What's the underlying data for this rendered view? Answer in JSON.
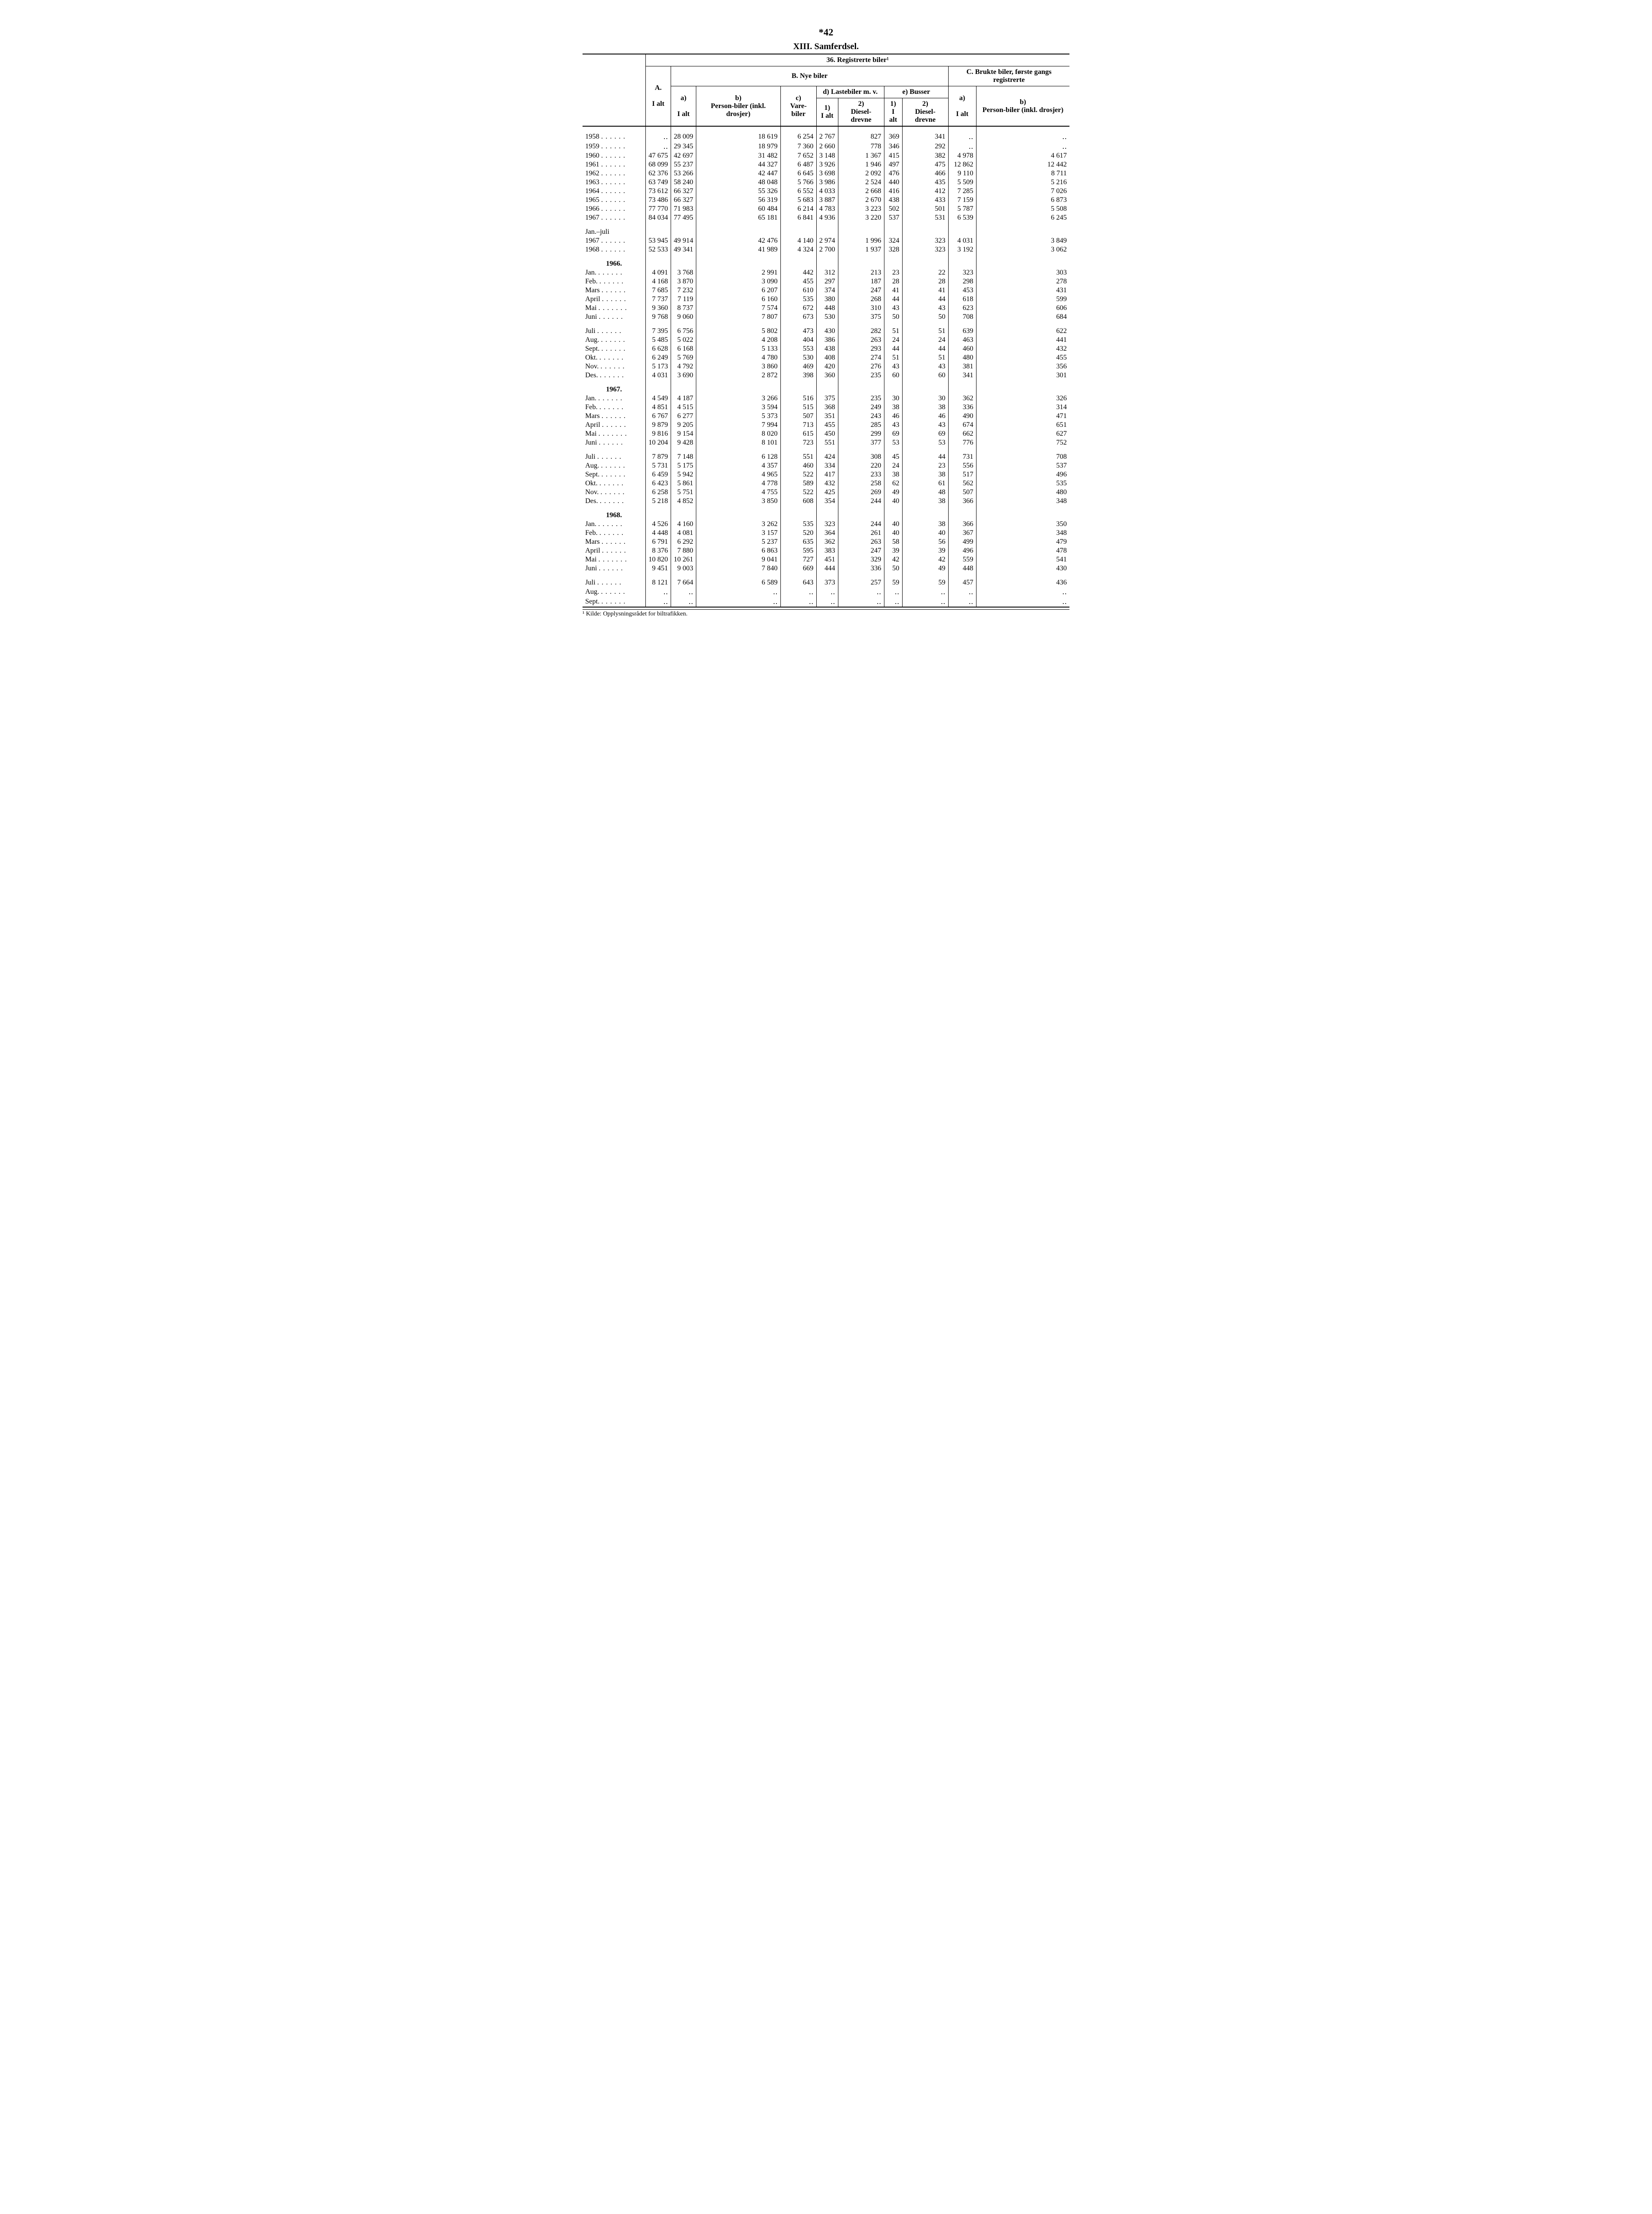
{
  "page_number": "*42",
  "section_title": "XIII. Samferdsel.",
  "table_title": "36. Registrerte biler¹",
  "header": {
    "A": "A.",
    "A_sub": "I alt",
    "B": "B. Nye biler",
    "C": "C. Brukte biler, første gangs registrerte",
    "a": "a)",
    "a_sub": "I alt",
    "b": "b)",
    "b_sub": "Person-biler (inkl. drosjer)",
    "c": "c)",
    "c_sub": "Vare-biler",
    "d": "d) Lastebiler m. v.",
    "d1": "1)",
    "d1_sub": "I alt",
    "d2": "2)",
    "d2_sub": "Diesel-drevne",
    "e": "e) Busser",
    "e1": "1)",
    "e1_sub": "I alt",
    "e2": "2)",
    "e2_sub": "Diesel-drevne",
    "Ca": "a)",
    "Ca_sub": "I alt",
    "Cb": "b)",
    "Cb_sub": "Person-biler (inkl. drosjer)"
  },
  "footnote": "¹ Kilde: Opplysningsrådet for biltrafikken.",
  "groups": [
    {
      "rows": [
        [
          "1958",
          "‥",
          "28 009",
          "18 619",
          "6 254",
          "2 767",
          "827",
          "369",
          "341",
          "‥",
          "‥"
        ],
        [
          "1959",
          "‥",
          "29 345",
          "18 979",
          "7 360",
          "2 660",
          "778",
          "346",
          "292",
          "‥",
          "‥"
        ],
        [
          "1960",
          "47 675",
          "42 697",
          "31 482",
          "7 652",
          "3 148",
          "1 367",
          "415",
          "382",
          "4 978",
          "4 617"
        ],
        [
          "1961",
          "68 099",
          "55 237",
          "44 327",
          "6 487",
          "3 926",
          "1 946",
          "497",
          "475",
          "12 862",
          "12 442"
        ],
        [
          "1962",
          "62 376",
          "53 266",
          "42 447",
          "6 645",
          "3 698",
          "2 092",
          "476",
          "466",
          "9 110",
          "8 711"
        ],
        [
          "1963",
          "63 749",
          "58 240",
          "48 048",
          "5 766",
          "3 986",
          "2 524",
          "440",
          "435",
          "5 509",
          "5 216"
        ],
        [
          "1964",
          "73 612",
          "66 327",
          "55 326",
          "6 552",
          "4 033",
          "2 668",
          "416",
          "412",
          "7 285",
          "7 026"
        ],
        [
          "1965",
          "73 486",
          "66 327",
          "56 319",
          "5 683",
          "3 887",
          "2 670",
          "438",
          "433",
          "7 159",
          "6 873"
        ],
        [
          "1966",
          "77 770",
          "71 983",
          "60 484",
          "6 214",
          "4 783",
          "3 223",
          "502",
          "501",
          "5 787",
          "5 508"
        ],
        [
          "1967",
          "84 034",
          "77 495",
          "65 181",
          "6 841",
          "4 936",
          "3 220",
          "537",
          "531",
          "6 539",
          "6 245"
        ]
      ]
    },
    {
      "heading": "Jan.–juli",
      "rows": [
        [
          "1967",
          "53 945",
          "49 914",
          "42 476",
          "4 140",
          "2 974",
          "1 996",
          "324",
          "323",
          "4 031",
          "3 849"
        ],
        [
          "1968",
          "52 533",
          "49 341",
          "41 989",
          "4 324",
          "2 700",
          "1 937",
          "328",
          "323",
          "3 192",
          "3 062"
        ]
      ]
    },
    {
      "heading": "1966.",
      "rows": [
        [
          "Jan.",
          "4 091",
          "3 768",
          "2 991",
          "442",
          "312",
          "213",
          "23",
          "22",
          "323",
          "303"
        ],
        [
          "Feb.",
          "4 168",
          "3 870",
          "3 090",
          "455",
          "297",
          "187",
          "28",
          "28",
          "298",
          "278"
        ],
        [
          "Mars",
          "7 685",
          "7 232",
          "6 207",
          "610",
          "374",
          "247",
          "41",
          "41",
          "453",
          "431"
        ],
        [
          "April",
          "7 737",
          "7 119",
          "6 160",
          "535",
          "380",
          "268",
          "44",
          "44",
          "618",
          "599"
        ],
        [
          "Mai",
          "9 360",
          "8 737",
          "7 574",
          "672",
          "448",
          "310",
          "43",
          "43",
          "623",
          "606"
        ],
        [
          "Juni",
          "9 768",
          "9 060",
          "7 807",
          "673",
          "530",
          "375",
          "50",
          "50",
          "708",
          "684"
        ]
      ]
    },
    {
      "rows": [
        [
          "Juli",
          "7 395",
          "6 756",
          "5 802",
          "473",
          "430",
          "282",
          "51",
          "51",
          "639",
          "622"
        ],
        [
          "Aug.",
          "5 485",
          "5 022",
          "4 208",
          "404",
          "386",
          "263",
          "24",
          "24",
          "463",
          "441"
        ],
        [
          "Sept.",
          "6 628",
          "6 168",
          "5 133",
          "553",
          "438",
          "293",
          "44",
          "44",
          "460",
          "432"
        ],
        [
          "Okt.",
          "6 249",
          "5 769",
          "4 780",
          "530",
          "408",
          "274",
          "51",
          "51",
          "480",
          "455"
        ],
        [
          "Nov.",
          "5 173",
          "4 792",
          "3 860",
          "469",
          "420",
          "276",
          "43",
          "43",
          "381",
          "356"
        ],
        [
          "Des.",
          "4 031",
          "3 690",
          "2 872",
          "398",
          "360",
          "235",
          "60",
          "60",
          "341",
          "301"
        ]
      ]
    },
    {
      "heading": "1967.",
      "rows": [
        [
          "Jan.",
          "4 549",
          "4 187",
          "3 266",
          "516",
          "375",
          "235",
          "30",
          "30",
          "362",
          "326"
        ],
        [
          "Feb.",
          "4 851",
          "4 515",
          "3 594",
          "515",
          "368",
          "249",
          "38",
          "38",
          "336",
          "314"
        ],
        [
          "Mars",
          "6 767",
          "6 277",
          "5 373",
          "507",
          "351",
          "243",
          "46",
          "46",
          "490",
          "471"
        ],
        [
          "April",
          "9 879",
          "9 205",
          "7 994",
          "713",
          "455",
          "285",
          "43",
          "43",
          "674",
          "651"
        ],
        [
          "Mai",
          "9 816",
          "9 154",
          "8 020",
          "615",
          "450",
          "299",
          "69",
          "69",
          "662",
          "627"
        ],
        [
          "Juni",
          "10 204",
          "9 428",
          "8 101",
          "723",
          "551",
          "377",
          "53",
          "53",
          "776",
          "752"
        ]
      ]
    },
    {
      "rows": [
        [
          "Juli",
          "7 879",
          "7 148",
          "6 128",
          "551",
          "424",
          "308",
          "45",
          "44",
          "731",
          "708"
        ],
        [
          "Aug.",
          "5 731",
          "5 175",
          "4 357",
          "460",
          "334",
          "220",
          "24",
          "23",
          "556",
          "537"
        ],
        [
          "Sept.",
          "6 459",
          "5 942",
          "4 965",
          "522",
          "417",
          "233",
          "38",
          "38",
          "517",
          "496"
        ],
        [
          "Okt.",
          "6 423",
          "5 861",
          "4 778",
          "589",
          "432",
          "258",
          "62",
          "61",
          "562",
          "535"
        ],
        [
          "Nov.",
          "6 258",
          "5 751",
          "4 755",
          "522",
          "425",
          "269",
          "49",
          "48",
          "507",
          "480"
        ],
        [
          "Des.",
          "5 218",
          "4 852",
          "3 850",
          "608",
          "354",
          "244",
          "40",
          "38",
          "366",
          "348"
        ]
      ]
    },
    {
      "heading": "1968.",
      "rows": [
        [
          "Jan.",
          "4 526",
          "4 160",
          "3 262",
          "535",
          "323",
          "244",
          "40",
          "38",
          "366",
          "350"
        ],
        [
          "Feb.",
          "4 448",
          "4 081",
          "3 157",
          "520",
          "364",
          "261",
          "40",
          "40",
          "367",
          "348"
        ],
        [
          "Mars",
          "6 791",
          "6 292",
          "5 237",
          "635",
          "362",
          "263",
          "58",
          "56",
          "499",
          "479"
        ],
        [
          "April",
          "8 376",
          "7 880",
          "6 863",
          "595",
          "383",
          "247",
          "39",
          "39",
          "496",
          "478"
        ],
        [
          "Mai",
          "10 820",
          "10 261",
          "9 041",
          "727",
          "451",
          "329",
          "42",
          "42",
          "559",
          "541"
        ],
        [
          "Juni",
          "9 451",
          "9 003",
          "7 840",
          "669",
          "444",
          "336",
          "50",
          "49",
          "448",
          "430"
        ]
      ]
    },
    {
      "rows": [
        [
          "Juli",
          "8 121",
          "7 664",
          "6 589",
          "643",
          "373",
          "257",
          "59",
          "59",
          "457",
          "436"
        ],
        [
          "Aug.",
          "‥",
          "‥",
          "‥",
          "‥",
          "‥",
          "‥",
          "‥",
          "‥",
          "‥",
          "‥"
        ],
        [
          "Sept.",
          "‥",
          "‥",
          "‥",
          "‥",
          "‥",
          "‥",
          "‥",
          "‥",
          "‥",
          "‥"
        ]
      ]
    }
  ]
}
